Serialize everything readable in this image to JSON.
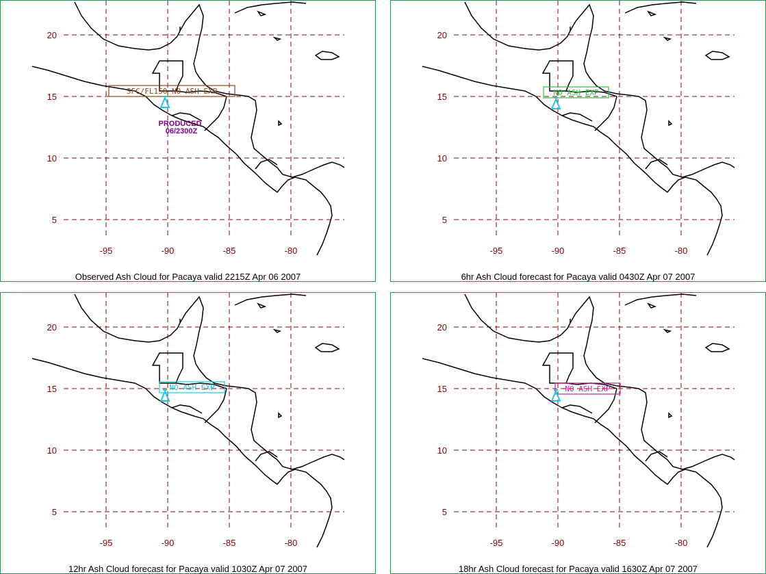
{
  "colors": {
    "grid": "#8b0000",
    "coast": "#000000",
    "volcano": "#1fc7e0",
    "label_p1": "#8b4513",
    "label_p2": "#22c53a",
    "label_p3": "#1fc7e0",
    "label_p4": "#c8209e",
    "produced": "#800080",
    "panel_border": "#2e8b57"
  },
  "map": {
    "lon_ticks": [
      "-95",
      "-90",
      "-85",
      "-80"
    ],
    "lat_ticks": [
      "20",
      "15",
      "10",
      "5"
    ]
  },
  "panels": [
    {
      "caption": "Observed Ash Cloud for Pacaya valid 2215Z Apr 06 2007",
      "box_label": "SFC/FL150 NO ASH EXP",
      "note_line1": "PRODUCED",
      "note_line2": "06/2300Z"
    },
    {
      "caption": "6hr Ash Cloud forecast for Pacaya valid 0430Z Apr 07 2007",
      "box_label": "NO ASH EXP"
    },
    {
      "caption": "12hr Ash Cloud forecast for Pacaya valid 1030Z Apr 07 2007",
      "box_label": "NO ASH EXP"
    },
    {
      "caption": "18hr Ash Cloud forecast for Pacaya valid 1630Z Apr 07 2007",
      "box_label": "NO ASH EXP"
    }
  ]
}
